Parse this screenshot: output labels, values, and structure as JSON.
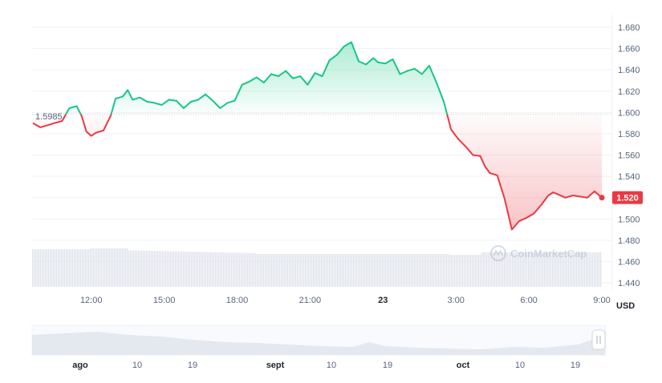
{
  "chart_data": {
    "type": "line",
    "unit_label": "USD",
    "reference_label": "1.5985",
    "reference_value": 1.5985,
    "current_price_label": "1.520",
    "current_value": 1.52,
    "watermark": "CoinMarketCap",
    "ylim": [
      1.44,
      1.69
    ],
    "yticks": [
      "1.680",
      "1.660",
      "1.640",
      "1.620",
      "1.600",
      "1.580",
      "1.560",
      "1.540",
      "1.520",
      "1.500",
      "1.480",
      "1.460",
      "1.440"
    ],
    "xlim": [
      9.6,
      33.1
    ],
    "xticks": [
      {
        "label": "12:00",
        "x": 12,
        "bold": false
      },
      {
        "label": "15:00",
        "x": 15,
        "bold": false
      },
      {
        "label": "18:00",
        "x": 18,
        "bold": false
      },
      {
        "label": "21:00",
        "x": 21,
        "bold": false
      },
      {
        "label": "23",
        "x": 24,
        "bold": true
      },
      {
        "label": "3:00",
        "x": 27,
        "bold": false
      },
      {
        "label": "6:00",
        "x": 30,
        "bold": false
      },
      {
        "label": "9:00",
        "x": 33,
        "bold": false
      }
    ],
    "x": [
      9.6,
      9.9,
      10.2,
      10.5,
      10.8,
      11.1,
      11.4,
      11.6,
      11.8,
      12.0,
      12.2,
      12.5,
      12.8,
      13.0,
      13.3,
      13.5,
      13.7,
      14.0,
      14.3,
      14.6,
      14.9,
      15.2,
      15.5,
      15.8,
      16.1,
      16.4,
      16.7,
      17.0,
      17.3,
      17.6,
      17.9,
      18.2,
      18.5,
      18.8,
      19.1,
      19.4,
      19.7,
      20.0,
      20.3,
      20.6,
      20.9,
      21.2,
      21.5,
      21.8,
      22.1,
      22.4,
      22.7,
      23.0,
      23.3,
      23.6,
      23.8,
      24.1,
      24.4,
      24.7,
      25.0,
      25.3,
      25.6,
      25.9,
      26.2,
      26.5,
      26.8,
      27.1,
      27.4,
      27.7,
      28.0,
      28.2,
      28.4,
      28.7,
      29.0,
      29.3,
      29.6,
      29.9,
      30.2,
      30.5,
      30.8,
      31.0,
      31.2,
      31.5,
      31.8,
      32.1,
      32.4,
      32.7,
      33.0
    ],
    "series": [
      {
        "values": [
          1.59,
          1.586,
          1.588,
          1.59,
          1.592,
          1.604,
          1.606,
          1.597,
          1.582,
          1.578,
          1.581,
          1.583,
          1.597,
          1.613,
          1.615,
          1.621,
          1.612,
          1.614,
          1.61,
          1.609,
          1.607,
          1.612,
          1.611,
          1.604,
          1.61,
          1.612,
          1.617,
          1.611,
          1.604,
          1.609,
          1.611,
          1.626,
          1.629,
          1.633,
          1.628,
          1.636,
          1.634,
          1.639,
          1.632,
          1.634,
          1.626,
          1.637,
          1.634,
          1.649,
          1.654,
          1.662,
          1.666,
          1.648,
          1.645,
          1.651,
          1.647,
          1.646,
          1.65,
          1.636,
          1.639,
          1.641,
          1.636,
          1.644,
          1.628,
          1.61,
          1.584,
          1.575,
          1.568,
          1.56,
          1.559,
          1.549,
          1.543,
          1.541,
          1.519,
          1.49,
          1.498,
          1.501,
          1.505,
          1.513,
          1.522,
          1.525,
          1.523,
          1.52,
          1.522,
          1.521,
          1.52,
          1.526,
          1.52
        ]
      }
    ]
  }
}
